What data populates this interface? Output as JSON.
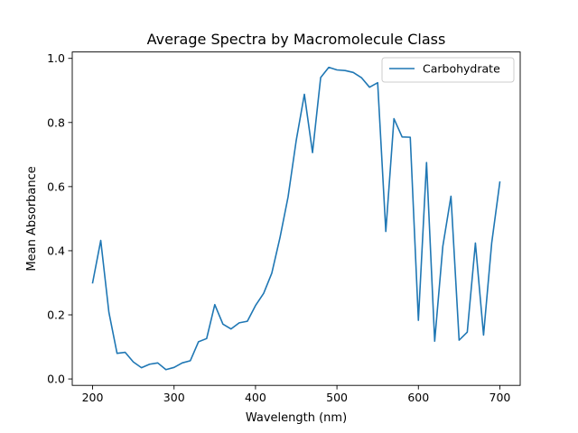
{
  "chart_data": {
    "type": "line",
    "title": "Average Spectra by Macromolecule Class",
    "xlabel": "Wavelength (nm)",
    "ylabel": "Mean Absorbance",
    "xlim": [
      175,
      725
    ],
    "ylim": [
      -0.02,
      1.02
    ],
    "x_ticks": [
      200,
      300,
      400,
      500,
      600,
      700
    ],
    "y_ticks": [
      0.0,
      0.2,
      0.4,
      0.6,
      0.8,
      1.0
    ],
    "x_tick_labels": [
      "200",
      "300",
      "400",
      "500",
      "600",
      "700"
    ],
    "y_tick_labels": [
      "0.0",
      "0.2",
      "0.4",
      "0.6",
      "0.8",
      "1.0"
    ],
    "grid": false,
    "legend": {
      "position": "top-right"
    },
    "x": [
      200,
      210,
      220,
      230,
      240,
      250,
      260,
      270,
      280,
      290,
      300,
      310,
      320,
      330,
      340,
      350,
      360,
      370,
      380,
      390,
      400,
      410,
      420,
      430,
      440,
      450,
      460,
      470,
      480,
      490,
      500,
      510,
      520,
      530,
      540,
      550,
      560,
      570,
      580,
      590,
      600,
      610,
      620,
      630,
      640,
      650,
      660,
      670,
      680,
      690,
      700
    ],
    "series": [
      {
        "name": "Carbohydrate",
        "color": "#1f77b4",
        "values": [
          0.3,
          0.432,
          0.208,
          0.08,
          0.083,
          0.053,
          0.035,
          0.046,
          0.05,
          0.029,
          0.036,
          0.05,
          0.057,
          0.116,
          0.126,
          0.232,
          0.171,
          0.156,
          0.175,
          0.18,
          0.229,
          0.267,
          0.33,
          0.44,
          0.568,
          0.744,
          0.888,
          0.706,
          0.94,
          0.972,
          0.964,
          0.962,
          0.956,
          0.94,
          0.91,
          0.924,
          0.46,
          0.812,
          0.755,
          0.754,
          0.183,
          0.675,
          0.118,
          0.414,
          0.57,
          0.121,
          0.146,
          0.424,
          0.137,
          0.424,
          0.614
        ]
      }
    ]
  }
}
